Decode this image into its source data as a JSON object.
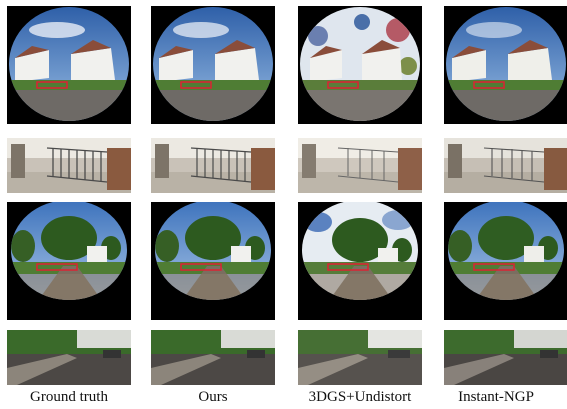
{
  "figure": {
    "columns": [
      {
        "label": "Ground truth",
        "method": "ground_truth"
      },
      {
        "label": "Ours",
        "method": "ours"
      },
      {
        "label": "3DGS+Undistort",
        "method": "3dgs_undistort"
      },
      {
        "label": "Instant-NGP",
        "method": "instant_ngp"
      }
    ],
    "rows": [
      {
        "kind": "fisheye",
        "scene": "houses-street"
      },
      {
        "kind": "crop",
        "scene": "gate-fence"
      },
      {
        "kind": "fisheye",
        "scene": "trees-road"
      },
      {
        "kind": "crop",
        "scene": "road-hedge"
      }
    ],
    "colors": {
      "sky": "#4a7fc4",
      "cloud": "#e8eef6",
      "house": "#f1f1ee",
      "roof": "#8a4d3a",
      "grass": "#4f7d34",
      "road": "#6e6a66",
      "tree": "#2d5a1f",
      "background": "#000000"
    }
  }
}
